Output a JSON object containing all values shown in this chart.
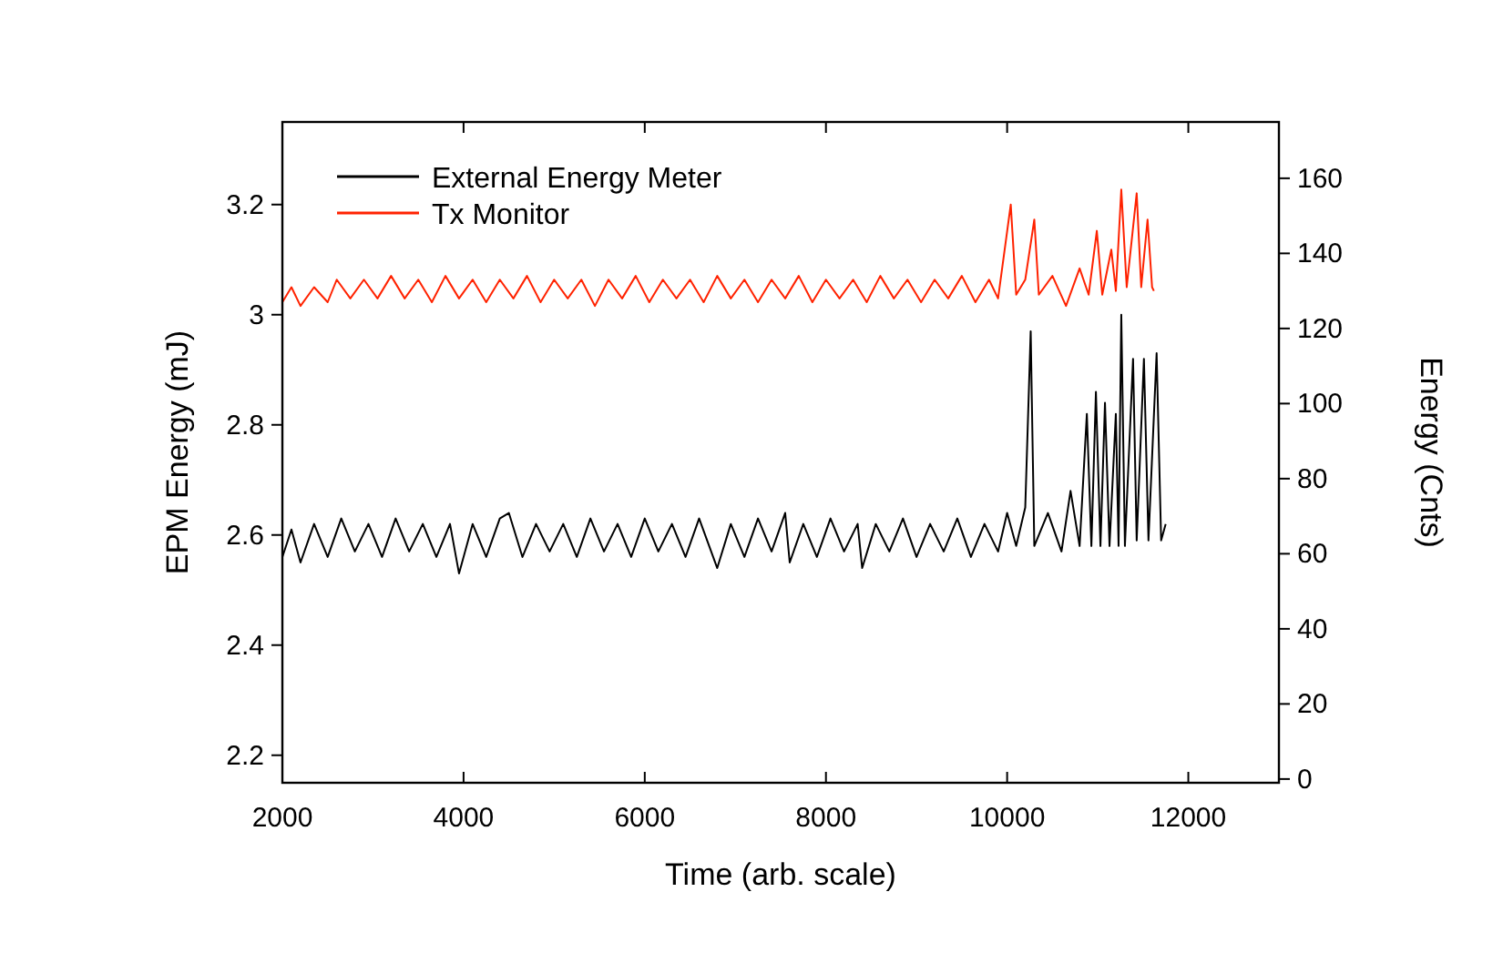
{
  "chart_data": {
    "type": "line",
    "xlabel": "Time (arb. scale)",
    "ylabel": "EPM Energy (mJ)",
    "y2label": "Energy (Cnts)",
    "xlim": [
      2000,
      13000
    ],
    "xticks": [
      2000,
      4000,
      6000,
      8000,
      10000,
      12000
    ],
    "ylim": [
      2.15,
      3.35
    ],
    "yticks": [
      2.2,
      2.4,
      2.6,
      2.8,
      3.0,
      3.2
    ],
    "y2lim": [
      -1,
      175
    ],
    "y2ticks": [
      0,
      20,
      40,
      60,
      80,
      100,
      120,
      140,
      160
    ],
    "legend": "top left",
    "grid": false,
    "marker": "none",
    "line_style": "solid",
    "series": [
      {
        "name": "External Energy Meter",
        "color": "#000000",
        "x": [
          2000,
          2100,
          2200,
          2350,
          2500,
          2650,
          2800,
          2950,
          3100,
          3250,
          3400,
          3550,
          3700,
          3850,
          3950,
          4100,
          4250,
          4400,
          4500,
          4650,
          4800,
          4950,
          5100,
          5250,
          5400,
          5550,
          5700,
          5850,
          6000,
          6150,
          6300,
          6450,
          6600,
          6800,
          6950,
          7100,
          7250,
          7400,
          7550,
          7600,
          7750,
          7900,
          8050,
          8200,
          8350,
          8400,
          8550,
          8700,
          8850,
          9000,
          9150,
          9300,
          9450,
          9600,
          9750,
          9900,
          10000,
          10100,
          10200,
          10260,
          10300,
          10450,
          10600,
          10700,
          10800,
          10880,
          10930,
          10980,
          11030,
          11080,
          11130,
          11200,
          11230,
          11260,
          11300,
          11390,
          11430,
          11510,
          11560,
          11650,
          11700,
          11750
        ],
        "values": [
          2.56,
          2.61,
          2.55,
          2.62,
          2.56,
          2.63,
          2.57,
          2.62,
          2.56,
          2.63,
          2.57,
          2.62,
          2.56,
          2.62,
          2.53,
          2.62,
          2.56,
          2.63,
          2.64,
          2.56,
          2.62,
          2.57,
          2.62,
          2.56,
          2.63,
          2.57,
          2.62,
          2.56,
          2.63,
          2.57,
          2.62,
          2.56,
          2.63,
          2.54,
          2.62,
          2.56,
          2.63,
          2.57,
          2.64,
          2.55,
          2.62,
          2.56,
          2.63,
          2.57,
          2.62,
          2.54,
          2.62,
          2.57,
          2.63,
          2.56,
          2.62,
          2.57,
          2.63,
          2.56,
          2.62,
          2.57,
          2.64,
          2.58,
          2.65,
          2.97,
          2.58,
          2.64,
          2.57,
          2.68,
          2.58,
          2.82,
          2.58,
          2.86,
          2.58,
          2.84,
          2.58,
          2.82,
          2.58,
          3.0,
          2.58,
          2.92,
          2.59,
          2.92,
          2.59,
          2.93,
          2.59,
          2.62
        ]
      },
      {
        "name": "Tx Monitor",
        "color": "#ff2200",
        "axis": "y2",
        "x": [
          2000,
          2100,
          2200,
          2350,
          2500,
          2600,
          2750,
          2900,
          3050,
          3200,
          3350,
          3500,
          3650,
          3800,
          3950,
          4100,
          4250,
          4400,
          4550,
          4700,
          4850,
          5000,
          5150,
          5300,
          5450,
          5600,
          5750,
          5900,
          6050,
          6200,
          6350,
          6500,
          6650,
          6800,
          6950,
          7100,
          7250,
          7400,
          7550,
          7700,
          7850,
          8000,
          8150,
          8300,
          8450,
          8600,
          8750,
          8900,
          9050,
          9200,
          9350,
          9500,
          9650,
          9800,
          9900,
          10040,
          10100,
          10200,
          10300,
          10350,
          10500,
          10650,
          10800,
          10900,
          10990,
          11050,
          11150,
          11200,
          11260,
          11320,
          11430,
          11480,
          11550,
          11600,
          11620
        ],
        "values": [
          127,
          131,
          126,
          131,
          127,
          133,
          128,
          133,
          128,
          134,
          128,
          133,
          127,
          134,
          128,
          133,
          127,
          133,
          128,
          134,
          127,
          133,
          128,
          133,
          126,
          133,
          128,
          134,
          127,
          133,
          128,
          133,
          127,
          134,
          128,
          133,
          127,
          133,
          128,
          134,
          127,
          133,
          128,
          133,
          127,
          134,
          128,
          133,
          127,
          133,
          128,
          134,
          127,
          133,
          128,
          153,
          129,
          133,
          149,
          129,
          134,
          126,
          136,
          129,
          146,
          129,
          141,
          130,
          157,
          131,
          156,
          131,
          149,
          131,
          130
        ]
      }
    ]
  }
}
